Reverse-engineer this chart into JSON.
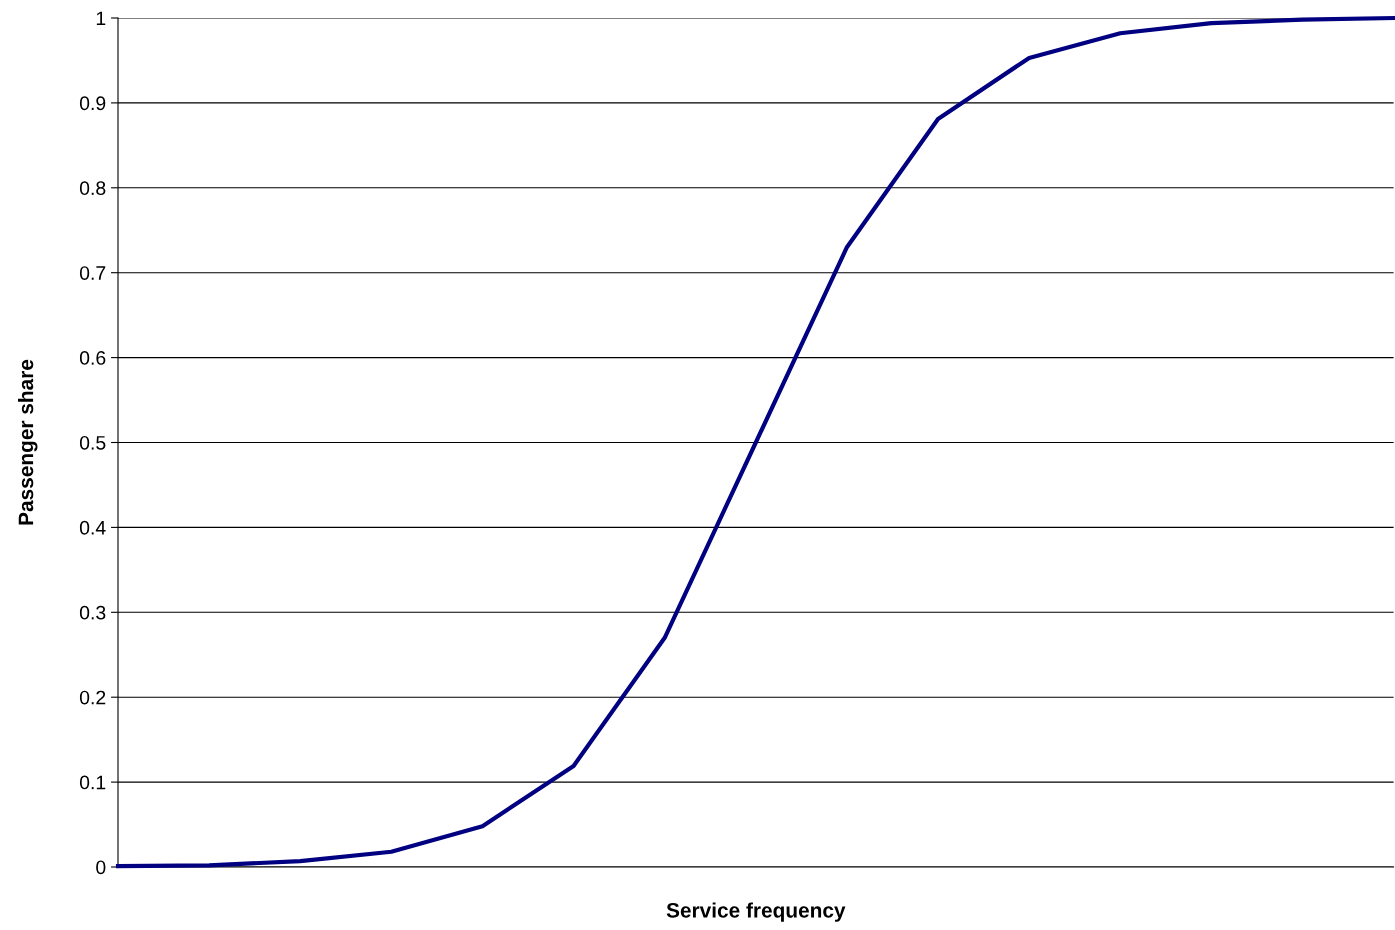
{
  "chart_data": {
    "type": "line",
    "xlabel": "Service frequency",
    "ylabel": "Passenger share",
    "categories": [
      null,
      null,
      null,
      null,
      null,
      null,
      null,
      null,
      null,
      null,
      null,
      null,
      null,
      null,
      null
    ],
    "series": [
      {
        "color": "#000080",
        "values": [
          0.001,
          0.002,
          0.007,
          0.018,
          0.048,
          0.119,
          0.27,
          0.5,
          0.73,
          0.881,
          0.953,
          0.982,
          0.994,
          0.998,
          1.0
        ]
      }
    ],
    "ylim": [
      0,
      1
    ],
    "yticks": [
      0,
      0.1,
      0.2,
      0.3,
      0.4,
      0.5,
      0.6,
      0.7,
      0.8,
      0.9,
      1
    ],
    "grid": "y",
    "marker": "none",
    "line_style": "solid"
  }
}
